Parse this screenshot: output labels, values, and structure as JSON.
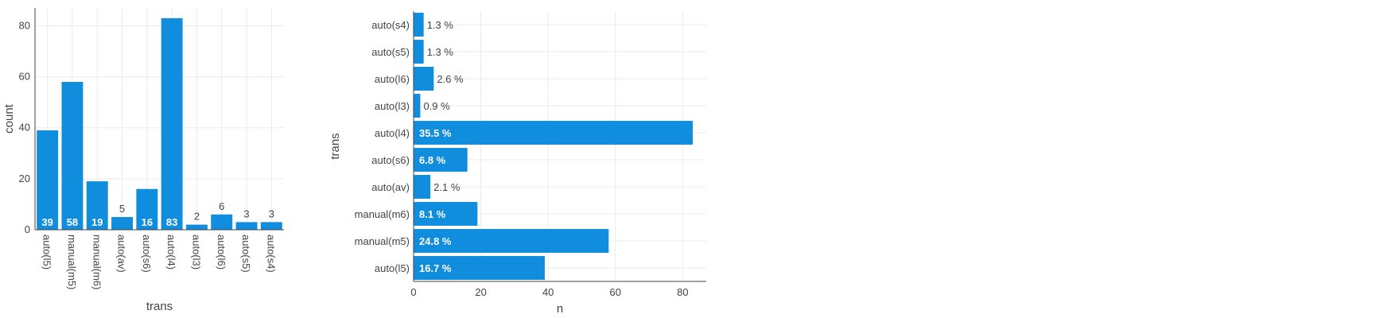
{
  "chart_data": [
    {
      "type": "bar",
      "orientation": "vertical",
      "categories": [
        "auto(l5)",
        "manual(m5)",
        "manual(m6)",
        "auto(av)",
        "auto(s6)",
        "auto(l4)",
        "auto(l3)",
        "auto(l6)",
        "auto(s5)",
        "auto(s4)"
      ],
      "values": [
        39,
        58,
        19,
        5,
        16,
        83,
        2,
        6,
        3,
        3
      ],
      "data_labels": [
        "39",
        "58",
        "19",
        "5",
        "16",
        "83",
        "2",
        "6",
        "3",
        "3"
      ],
      "xlabel": "trans",
      "ylabel": "count",
      "ylim": [
        0,
        87
      ],
      "yticks": [
        0,
        20,
        40,
        60,
        80
      ],
      "grid": true,
      "bar_color": "#118dde"
    },
    {
      "type": "bar",
      "orientation": "horizontal",
      "categories": [
        "auto(s4)",
        "auto(s5)",
        "auto(l6)",
        "auto(l3)",
        "auto(l4)",
        "auto(s6)",
        "auto(av)",
        "manual(m6)",
        "manual(m5)",
        "auto(l5)"
      ],
      "values": [
        3,
        3,
        6,
        2,
        83,
        16,
        5,
        19,
        58,
        39
      ],
      "data_labels": [
        "1.3 %",
        "1.3 %",
        "2.6 %",
        "0.9 %",
        "35.5 %",
        "6.8 %",
        "2.1 %",
        "8.1 %",
        "24.8 %",
        "16.7 %"
      ],
      "xlabel": "n",
      "ylabel": "trans",
      "xlim": [
        0,
        87
      ],
      "xticks": [
        0,
        20,
        40,
        60,
        80
      ],
      "grid": true,
      "bar_color": "#118dde"
    }
  ]
}
